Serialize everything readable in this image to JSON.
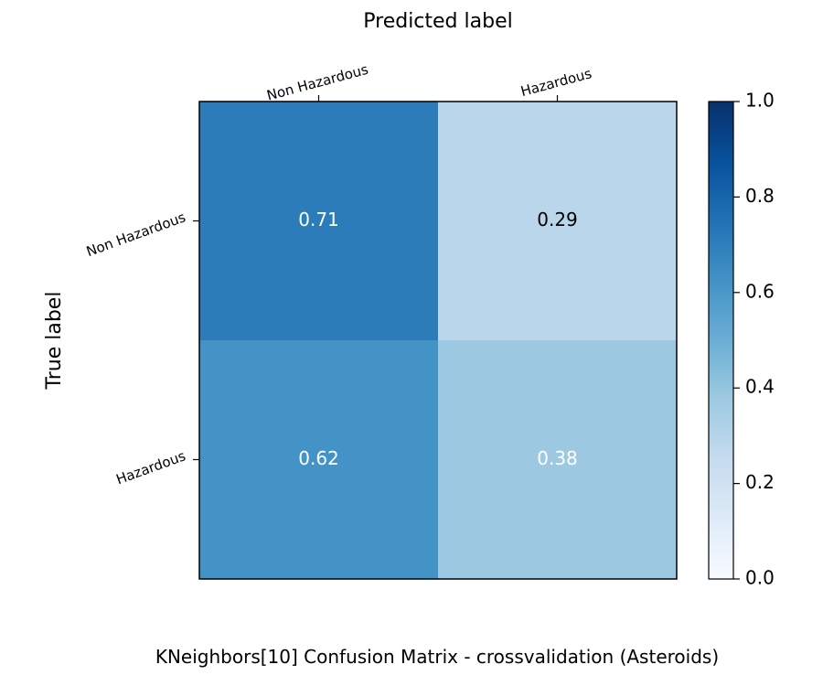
{
  "chart_data": {
    "type": "heatmap",
    "title": "KNeighbors[10] Confusion Matrix - crossvalidation (Asteroids)",
    "xlabel": "Predicted label",
    "ylabel": "True label",
    "x_categories": [
      "Non Hazardous",
      "Hazardous"
    ],
    "y_categories": [
      "Non Hazardous",
      "Hazardous"
    ],
    "values": [
      [
        0.71,
        0.29
      ],
      [
        0.62,
        0.38
      ]
    ],
    "cell_labels": [
      [
        "0.71",
        "0.29"
      ],
      [
        "0.62",
        "0.38"
      ]
    ],
    "colormap": "Blues",
    "vmin": 0.0,
    "vmax": 1.0,
    "colorbar_ticks": [
      "0.0",
      "0.2",
      "0.4",
      "0.6",
      "0.8",
      "1.0"
    ],
    "grid": false
  }
}
